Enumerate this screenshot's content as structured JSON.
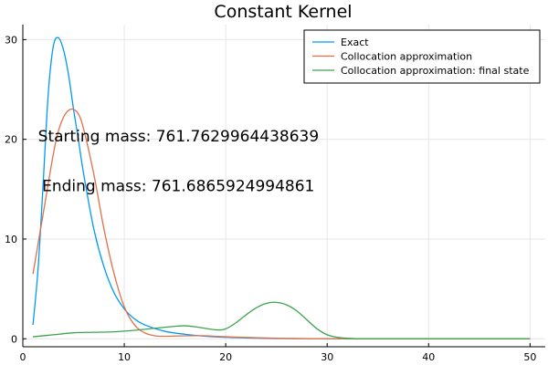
{
  "chart_data": {
    "type": "line",
    "title": "Constant Kernel",
    "xlabel": "",
    "ylabel": "",
    "xlim": [
      0,
      51.5
    ],
    "ylim": [
      -0.8,
      31.5
    ],
    "xticks": [
      0,
      10,
      20,
      30,
      40,
      50
    ],
    "yticks": [
      0,
      10,
      20,
      30
    ],
    "grid": true,
    "legend_position": "top-right",
    "annotations": [
      {
        "text": "Starting mass: 761.7629964438639",
        "x": 1.5,
        "y": 19.8
      },
      {
        "text": "Ending mass: 761.6865924994861",
        "x": 1.9,
        "y": 14.8
      }
    ],
    "series": [
      {
        "name": "Exact",
        "color": "#009af9",
        "x": [
          1.0,
          1.5,
          2.0,
          2.5,
          3.0,
          3.5,
          4.0,
          4.5,
          5.0,
          5.5,
          6.0,
          7.0,
          8.0,
          9.0,
          10.0,
          11.0,
          12.0,
          14.0,
          16.0,
          18.0,
          20.0,
          22.0,
          25.0,
          30.0,
          35.0,
          40.0,
          45.0,
          50.0
        ],
        "y": [
          1.4,
          7.0,
          15.5,
          24.5,
          29.3,
          30.2,
          29.0,
          26.5,
          23.0,
          19.8,
          16.5,
          11.0,
          7.2,
          4.6,
          3.0,
          2.0,
          1.4,
          0.75,
          0.45,
          0.25,
          0.15,
          0.08,
          0.03,
          0.01,
          0.0,
          0.0,
          0.0,
          0.0
        ]
      },
      {
        "name": "Collocation approximation",
        "color": "#e26f46",
        "x": [
          1.0,
          2.0,
          3.0,
          3.5,
          4.0,
          4.5,
          5.0,
          5.5,
          6.0,
          7.0,
          8.0,
          9.0,
          10.0,
          11.0,
          12.0,
          13.0,
          14.0,
          16.0,
          18.0,
          20.0,
          25.0,
          30.0,
          40.0,
          50.0
        ],
        "y": [
          6.5,
          12.5,
          18.5,
          20.8,
          22.2,
          22.9,
          23.0,
          22.5,
          21.0,
          16.5,
          11.0,
          6.5,
          3.2,
          1.4,
          0.6,
          0.3,
          0.25,
          0.3,
          0.3,
          0.2,
          0.05,
          0.0,
          0.0,
          0.0
        ]
      },
      {
        "name": "Collocation approximation: final state",
        "color": "#3da44d",
        "x": [
          1.0,
          3.0,
          5.0,
          7.0,
          9.0,
          11.0,
          13.0,
          15.0,
          16.0,
          17.0,
          19.0,
          20.0,
          21.0,
          22.0,
          23.0,
          24.0,
          25.0,
          26.0,
          27.0,
          28.0,
          29.0,
          30.0,
          31.0,
          32.0,
          33.0,
          35.0,
          40.0,
          50.0
        ],
        "y": [
          0.2,
          0.4,
          0.6,
          0.65,
          0.7,
          0.85,
          1.05,
          1.25,
          1.3,
          1.2,
          0.9,
          1.0,
          1.6,
          2.4,
          3.1,
          3.55,
          3.65,
          3.4,
          2.8,
          1.9,
          1.0,
          0.4,
          0.15,
          0.05,
          0.0,
          0.0,
          0.0,
          0.0
        ]
      }
    ]
  }
}
